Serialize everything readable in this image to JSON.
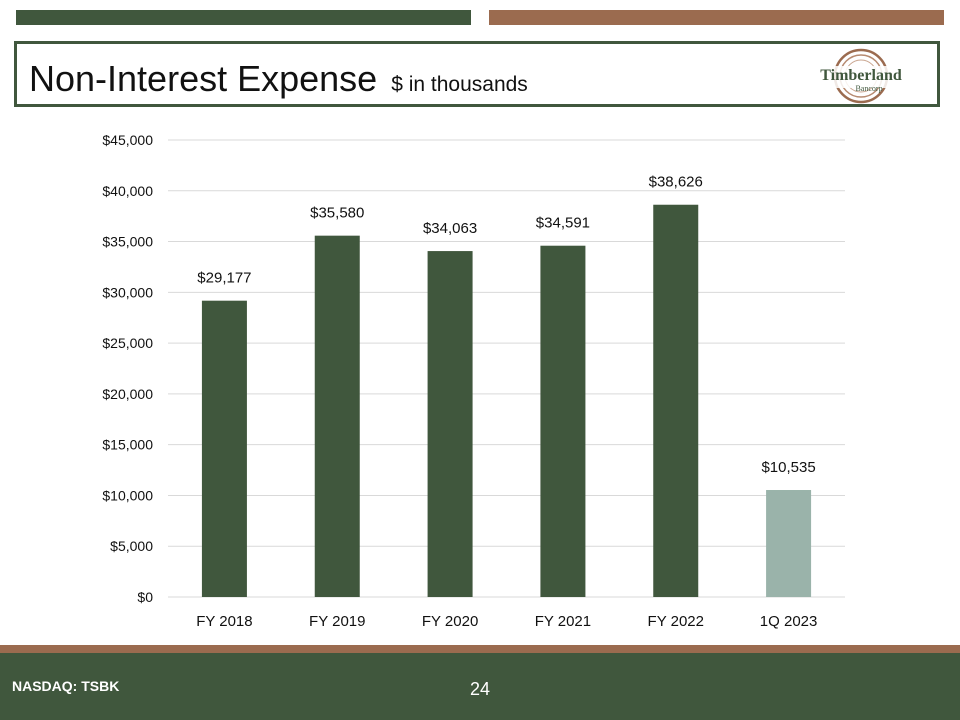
{
  "header": {
    "title": "Non-Interest Expense",
    "subtitle": "$ in thousands",
    "logo_name": "Timberland",
    "logo_sub": "Bancorp"
  },
  "colors": {
    "dark_green": "#40573d",
    "brown": "#9b6b4f",
    "light_bar": "#9ab3aa",
    "grid": "#d9d9d9"
  },
  "chart_data": {
    "type": "bar",
    "categories": [
      "FY 2018",
      "FY 2019",
      "FY 2020",
      "FY 2021",
      "FY 2022",
      "1Q 2023"
    ],
    "values": [
      29177,
      35580,
      34063,
      34591,
      38626,
      10535
    ],
    "data_labels": [
      "$29,177",
      "$35,580",
      "$34,063",
      "$34,591",
      "$38,626",
      "$10,535"
    ],
    "bar_colors": [
      "#40573d",
      "#40573d",
      "#40573d",
      "#40573d",
      "#40573d",
      "#9ab3aa"
    ],
    "ylim": [
      0,
      45000
    ],
    "yticks": [
      0,
      5000,
      10000,
      15000,
      20000,
      25000,
      30000,
      35000,
      40000,
      45000
    ],
    "ytick_labels": [
      "$0",
      "$5,000",
      "$10,000",
      "$15,000",
      "$20,000",
      "$25,000",
      "$30,000",
      "$35,000",
      "$40,000",
      "$45,000"
    ],
    "grid": true,
    "legend": "none"
  },
  "footer": {
    "ticker": "NASDAQ: TSBK",
    "page_number": "24"
  }
}
